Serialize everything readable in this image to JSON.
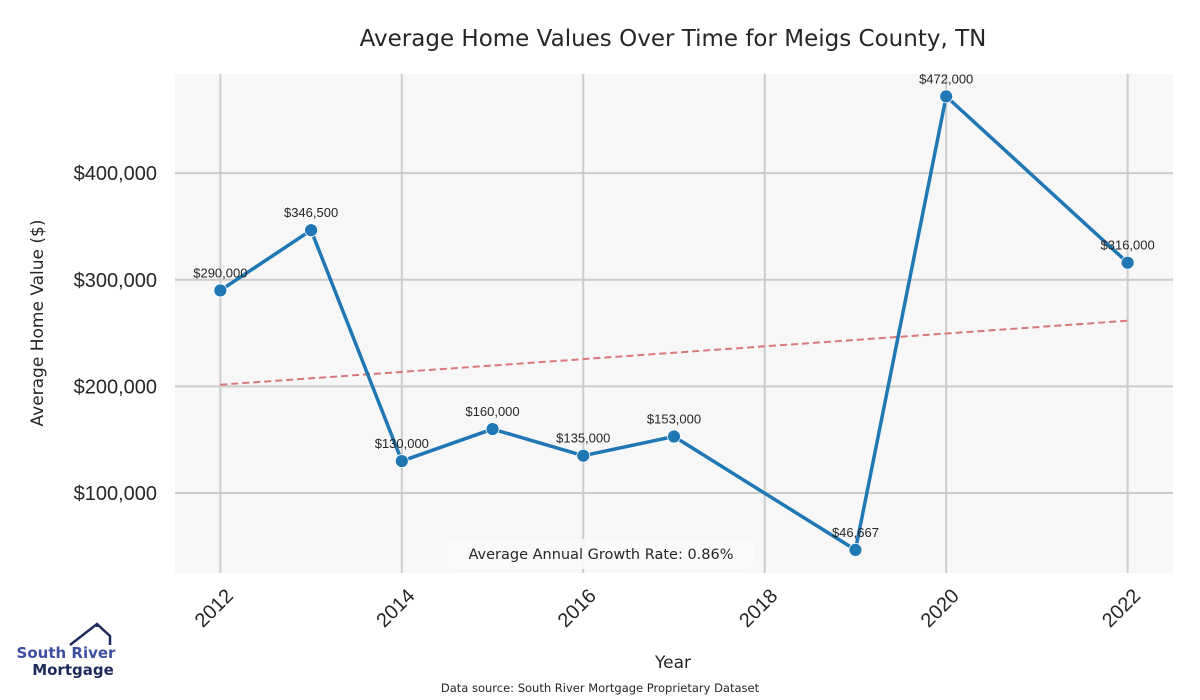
{
  "chart_data": {
    "type": "line",
    "title": "Average Home Values Over Time for Meigs County, TN",
    "xlabel": "Year",
    "ylabel": "Average Home Value ($)",
    "x": [
      2012,
      2013,
      2014,
      2015,
      2016,
      2017,
      2019,
      2020,
      2022
    ],
    "series": [
      {
        "name": "Average Home Value",
        "values": [
          290000,
          346500,
          130000,
          160000,
          135000,
          153000,
          46667,
          472000,
          316000
        ],
        "labels": [
          "$290,000",
          "$346,500",
          "$130,000",
          "$160,000",
          "$135,000",
          "$153,000",
          "$46,667",
          "$472,000",
          "$316,000"
        ],
        "color": "#1f77b4"
      },
      {
        "name": "Trend",
        "x": [
          2012,
          2022
        ],
        "values": [
          201600,
          261600
        ],
        "color": "#d9777a",
        "style": "dashed"
      }
    ],
    "xticks": [
      2012,
      2014,
      2016,
      2018,
      2020,
      2022
    ],
    "xtick_labels": [
      "2012",
      "2014",
      "2016",
      "2018",
      "2020",
      "2022"
    ],
    "yticks": [
      100000,
      200000,
      300000,
      400000
    ],
    "ytick_labels": [
      "$100,000",
      "$200,000",
      "$300,000",
      "$400,000"
    ],
    "xlim": [
      2011.5,
      2022.5
    ],
    "ylim": [
      25000,
      493000
    ],
    "grid": true,
    "annotation": "Average Annual Growth Rate: 0.86%",
    "source": "Data source: South River Mortgage Proprietary Dataset"
  },
  "logo": {
    "line1": "South River",
    "line2": "Mortgage"
  },
  "colors": {
    "plot_bg": "#f7f7f7",
    "grid": "#cccccc",
    "line": "#1f77b4",
    "trend": "#d9777a"
  }
}
